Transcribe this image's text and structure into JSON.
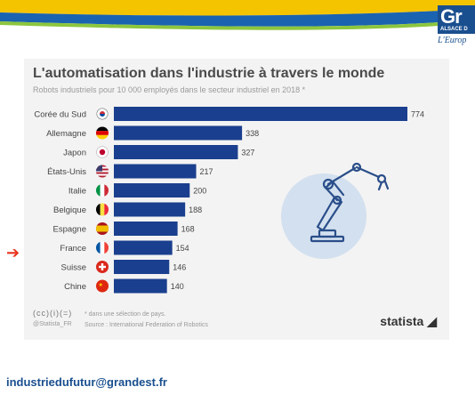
{
  "header": {
    "logo_text": "Gr",
    "logo_sub": "ALSACE D",
    "logo_tag": "L'Europ"
  },
  "colors": {
    "bar": "#1a3f8e",
    "band_yellow": "#f5c400",
    "band_blue": "#1a63b0",
    "arrow": "#e8341c"
  },
  "chart_data": {
    "type": "bar",
    "orientation": "horizontal",
    "title": "L'automatisation dans l'industrie à travers le monde",
    "subtitle": "Robots industriels pour 10 000 employés dans le secteur industriel en 2018 *",
    "categories": [
      "Corée du Sud",
      "Allemagne",
      "Japon",
      "États-Unis",
      "Italie",
      "Belgique",
      "Espagne",
      "France",
      "Suisse",
      "Chine"
    ],
    "values": [
      774,
      338,
      327,
      217,
      200,
      188,
      168,
      154,
      146,
      140
    ],
    "value_labels": [
      "774",
      "338",
      "327",
      "217",
      "200",
      "188",
      "168",
      "154",
      "146",
      "140"
    ],
    "flags": [
      "flag-south-korea-icon",
      "flag-germany-icon",
      "flag-japan-icon",
      "flag-usa-icon",
      "flag-italy-icon",
      "flag-belgium-icon",
      "flag-spain-icon",
      "flag-france-icon",
      "flag-switzerland-icon",
      "flag-china-icon"
    ],
    "xlim": [
      0,
      774
    ],
    "grid": false,
    "legend": "none"
  },
  "footer": {
    "license": "(cc)(i)(=)",
    "handle": "@Statista_FR",
    "note": "* dans une sélection de pays.",
    "source": "Source : International Federation of Robotics",
    "brand": "statista"
  },
  "email": "industriedufutur@grandest.fr"
}
